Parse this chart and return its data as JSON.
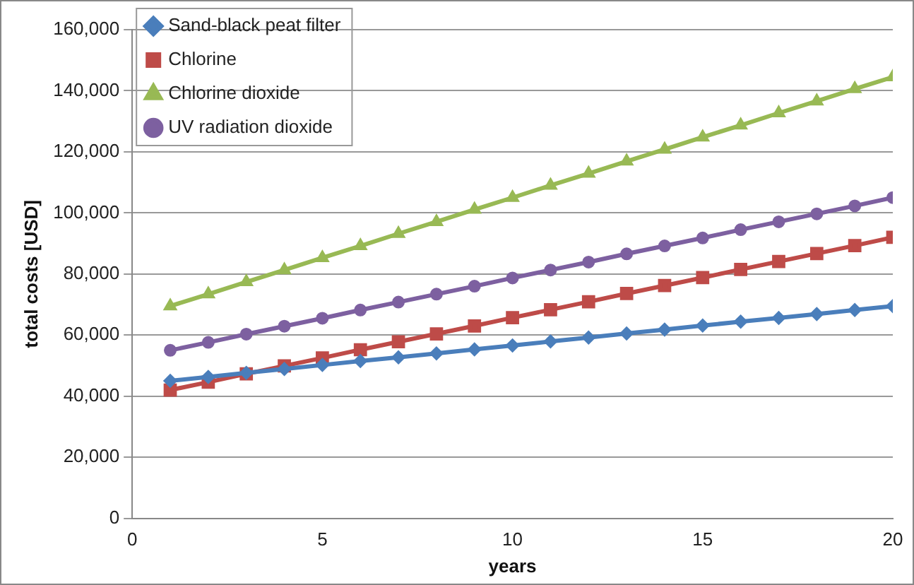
{
  "chart_data": {
    "type": "line",
    "xlabel": "years",
    "ylabel": "total costs [USD]",
    "x": [
      1,
      2,
      3,
      4,
      5,
      6,
      7,
      8,
      9,
      10,
      11,
      12,
      13,
      14,
      15,
      16,
      17,
      18,
      19,
      20
    ],
    "xlim": [
      0,
      20
    ],
    "xticks": [
      0,
      5,
      10,
      15,
      20
    ],
    "ylim": [
      0,
      160000
    ],
    "yticks": [
      {
        "value": 0,
        "label": "0"
      },
      {
        "value": 20000,
        "label": "20,000"
      },
      {
        "value": 40000,
        "label": "40,000"
      },
      {
        "value": 60000,
        "label": "60,000"
      },
      {
        "value": 80000,
        "label": "80,000"
      },
      {
        "value": 100000,
        "label": "100,000"
      },
      {
        "value": 120000,
        "label": "120,000"
      },
      {
        "value": 140000,
        "label": "140,000"
      },
      {
        "value": 160000,
        "label": "160,000"
      }
    ],
    "grid": "y",
    "legend": "top left",
    "line_style": "solid",
    "series": [
      {
        "name": "Sand-black peat filter",
        "color": "#4a7ebb",
        "marker": "diamond",
        "values": [
          45000,
          46300,
          47600,
          48900,
          50200,
          51500,
          52700,
          54000,
          55300,
          56600,
          57900,
          59200,
          60500,
          61800,
          63100,
          64400,
          65600,
          66900,
          68200,
          69500
        ]
      },
      {
        "name": "Chlorine",
        "color": "#be4b48",
        "marker": "square",
        "values": [
          42000,
          44600,
          47300,
          49900,
          52500,
          55200,
          57800,
          60400,
          63000,
          65700,
          68300,
          70900,
          73600,
          76200,
          78800,
          81500,
          84100,
          86700,
          89300,
          92000
        ]
      },
      {
        "name": "Chlorine dioxide",
        "color": "#98b954",
        "marker": "triangle",
        "values": [
          69500,
          73400,
          77400,
          81300,
          85300,
          89200,
          93200,
          97100,
          101100,
          105000,
          109000,
          112900,
          116900,
          120800,
          124800,
          128700,
          132700,
          136600,
          140600,
          144500
        ]
      },
      {
        "name": "UV radiation dioxide",
        "color": "#7d60a0",
        "marker": "circle",
        "values": [
          55000,
          57600,
          60300,
          62900,
          65500,
          68200,
          70800,
          73400,
          76000,
          78700,
          81300,
          83900,
          86600,
          89200,
          91800,
          94500,
          97100,
          99700,
          102300,
          105000
        ]
      }
    ]
  }
}
